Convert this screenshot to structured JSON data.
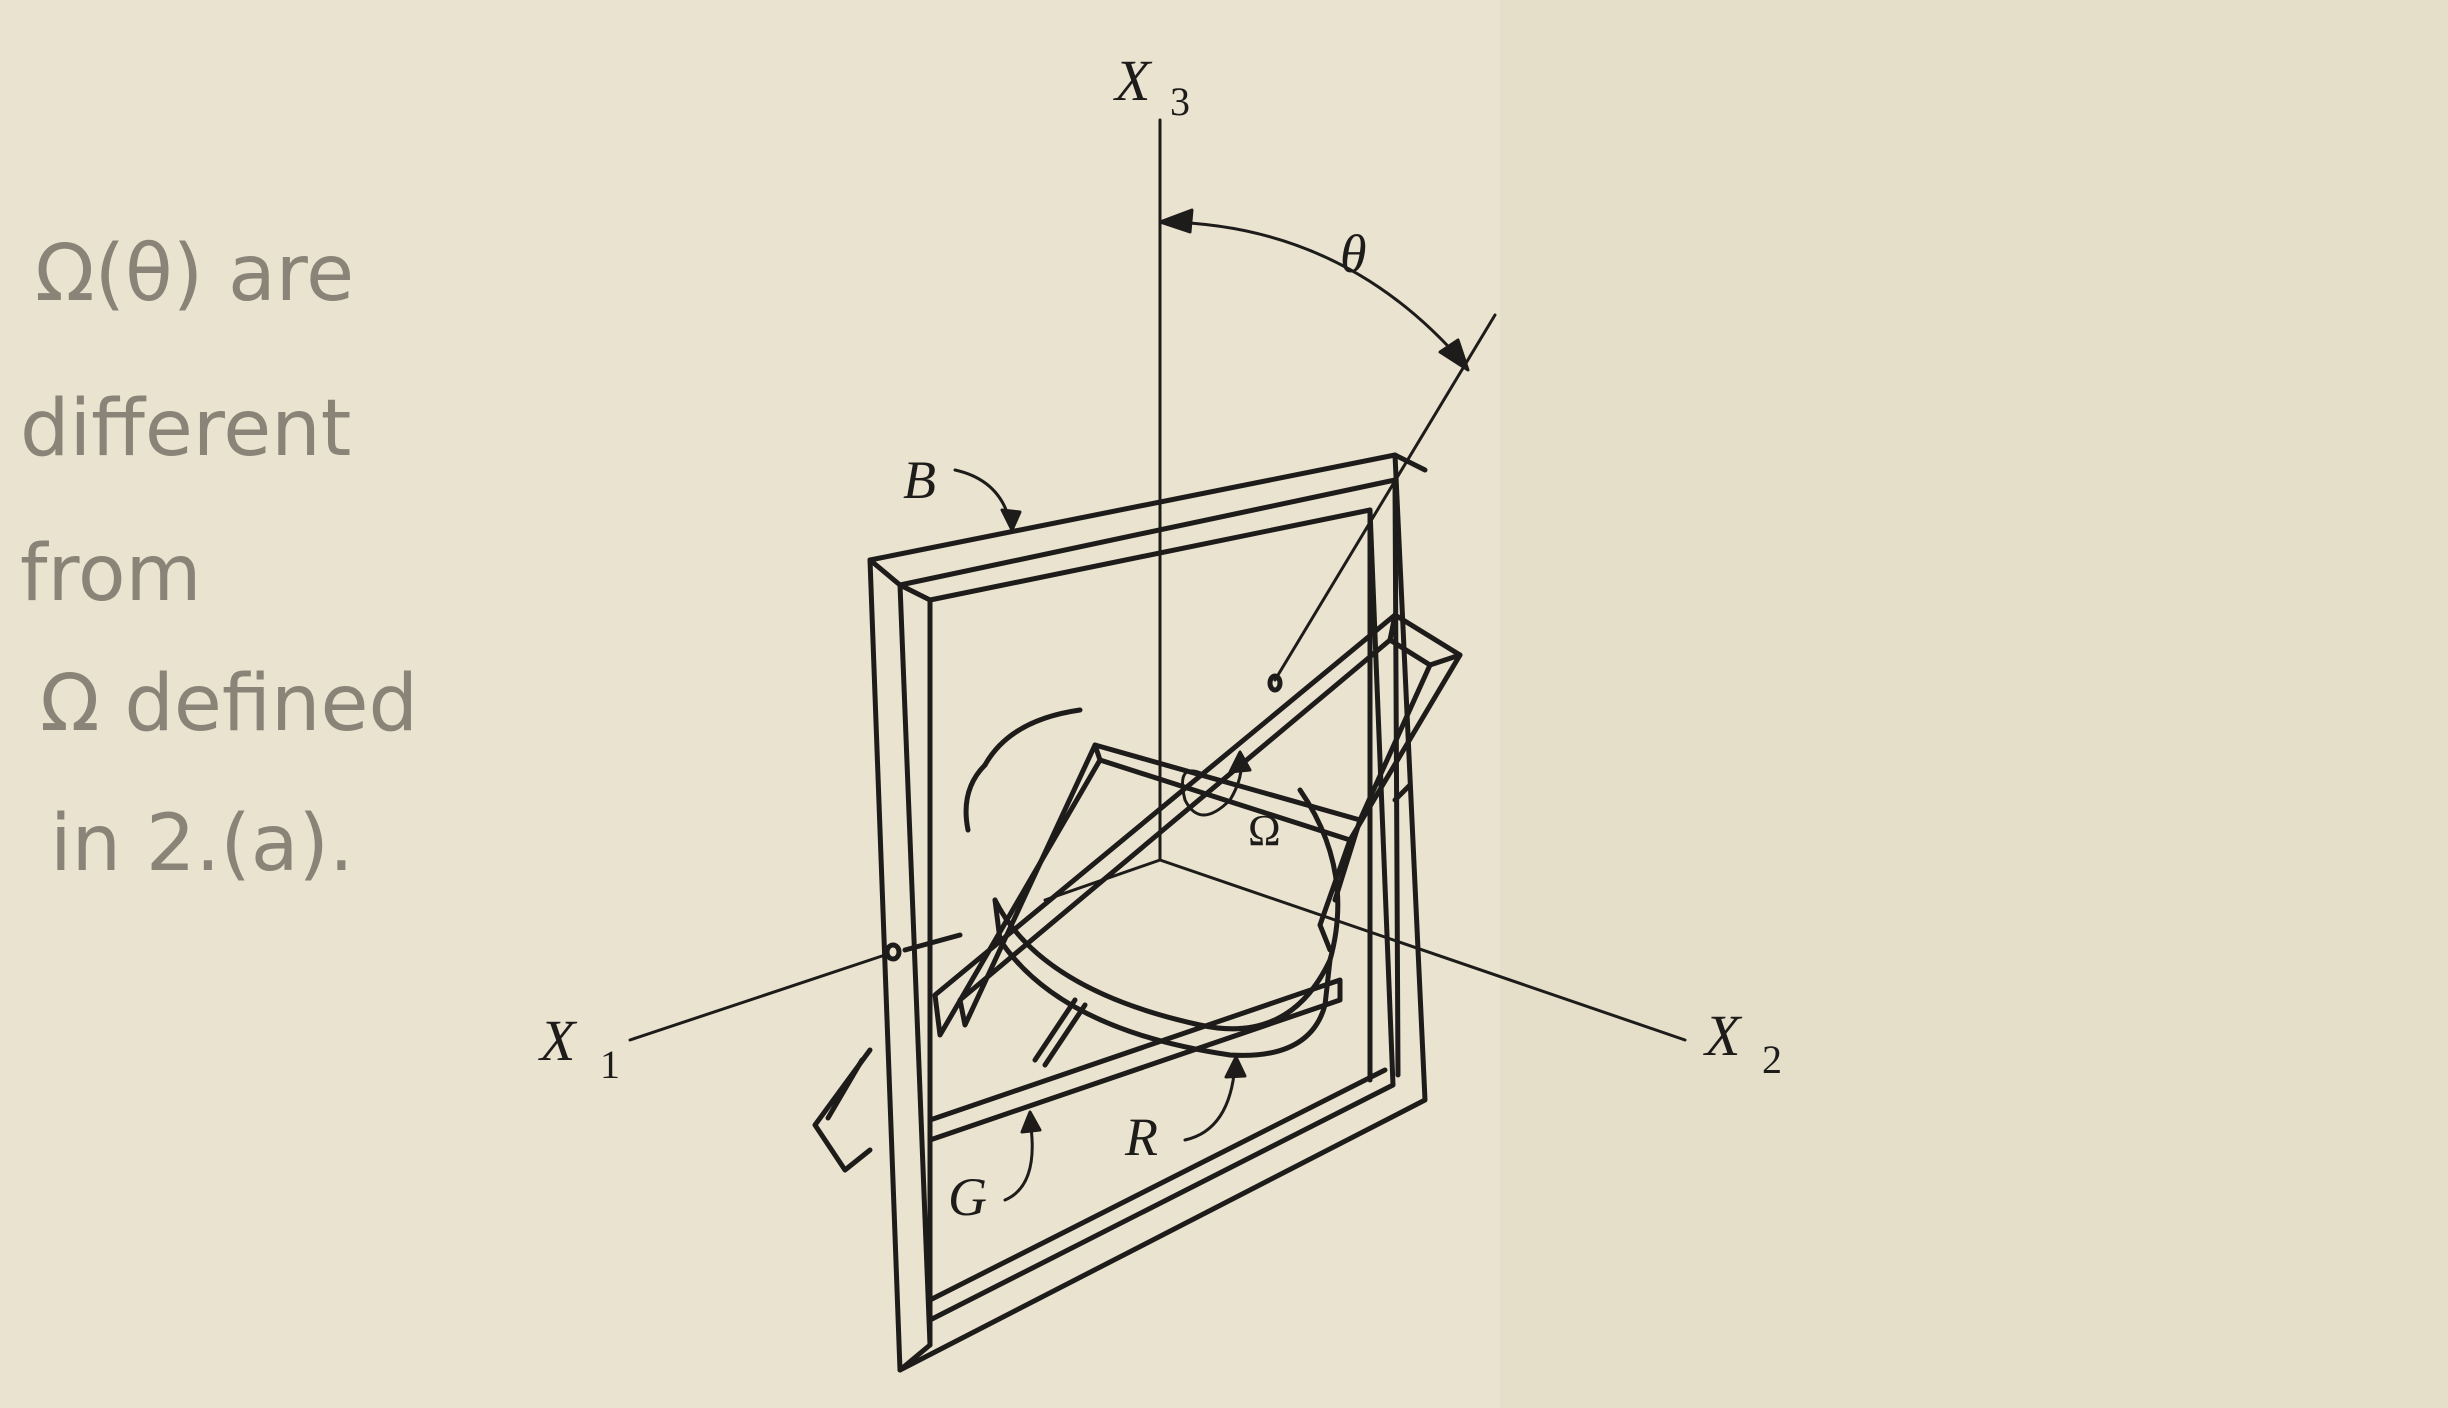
{
  "labels": {
    "x3": "X",
    "x3_sub": "3",
    "x1": "X",
    "x1_sub": "1",
    "x2": "X",
    "x2_sub": "2",
    "theta": "θ",
    "omega": "Ω",
    "b": "B",
    "g": "G",
    "r": "R"
  },
  "note": {
    "lines": [
      "Ω(θ) are",
      "different",
      "from",
      "Ω defined",
      "in 2.(a)."
    ]
  },
  "colors": {
    "paper": "#e9e3cf",
    "ink": "#1e1c1a",
    "pencil": "#8a8478"
  }
}
